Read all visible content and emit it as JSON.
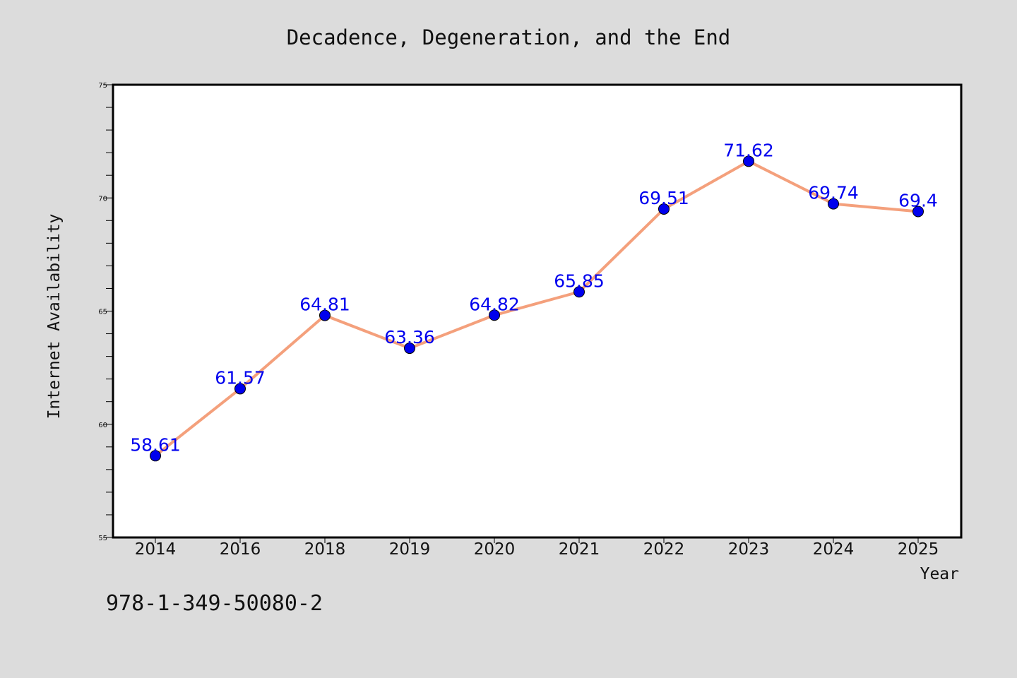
{
  "footer": {
    "code": "978-1-349-50080-2"
  },
  "chart_data": {
    "type": "line",
    "title": "Decadence, Degeneration, and the End",
    "xlabel": "Year",
    "ylabel": "Internet Availability",
    "categories": [
      "2014",
      "2016",
      "2018",
      "2019",
      "2020",
      "2021",
      "2022",
      "2023",
      "2024",
      "2025"
    ],
    "series": [
      {
        "values": [
          58.61,
          61.57,
          64.81,
          63.36,
          64.82,
          65.85,
          69.51,
          71.62,
          69.74,
          69.4
        ],
        "line_color": "#f4a07c",
        "marker_color": "#0000ee"
      }
    ],
    "data_labels": [
      "58.61",
      "61.57",
      "64.81",
      "63.36",
      "64.82",
      "65.85",
      "69.51",
      "71.62",
      "69.74",
      "69.4"
    ],
    "data_label_color": "#0000ee",
    "ylim": [
      55,
      75
    ],
    "yticks": [
      "55",
      "60",
      "65",
      "70",
      "75"
    ],
    "grid": false,
    "legend": "none",
    "plot_background": "#ffffff",
    "page_background": "#dcdcdc"
  }
}
